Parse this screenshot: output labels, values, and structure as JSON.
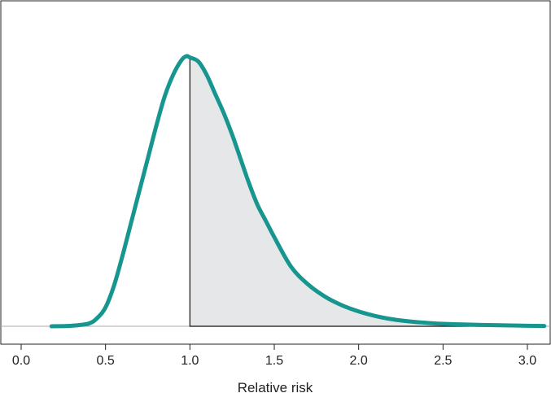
{
  "chart_data": {
    "type": "area",
    "xlabel": "Relative risk",
    "ylabel": "",
    "xlim": [
      0.0,
      3.1
    ],
    "ylim": [
      0,
      1
    ],
    "x_ticks": [
      0.0,
      0.5,
      1.0,
      1.5,
      2.0,
      2.5,
      3.0
    ],
    "x_tick_labels": [
      "0.0",
      "0.5",
      "1.0",
      "1.5",
      "2.0",
      "2.5",
      "3.0"
    ],
    "grid": false,
    "series": [
      {
        "x": [
          0.18,
          0.3,
          0.4,
          0.45,
          0.5,
          0.55,
          0.6,
          0.65,
          0.7,
          0.75,
          0.8,
          0.85,
          0.9,
          0.95,
          0.98,
          1.0,
          1.05,
          1.1,
          1.15,
          1.2,
          1.25,
          1.3,
          1.35,
          1.4,
          1.45,
          1.5,
          1.6,
          1.7,
          1.8,
          1.9,
          2.0,
          2.1,
          2.2,
          2.3,
          2.4,
          2.5,
          2.6,
          2.8,
          3.0,
          3.1
        ],
        "y": [
          0.0,
          0.002,
          0.01,
          0.03,
          0.07,
          0.15,
          0.26,
          0.38,
          0.5,
          0.62,
          0.74,
          0.85,
          0.93,
          0.985,
          1.0,
          0.995,
          0.98,
          0.93,
          0.86,
          0.79,
          0.71,
          0.62,
          0.53,
          0.45,
          0.39,
          0.33,
          0.22,
          0.155,
          0.11,
          0.078,
          0.055,
          0.038,
          0.026,
          0.018,
          0.013,
          0.009,
          0.007,
          0.004,
          0.002,
          0.001
        ]
      }
    ],
    "shaded_region": {
      "from": 1.0,
      "to": 3.1
    },
    "colors": {
      "curve": "#17968f",
      "shade": "#e6e7e9",
      "axis": "#222222"
    }
  }
}
